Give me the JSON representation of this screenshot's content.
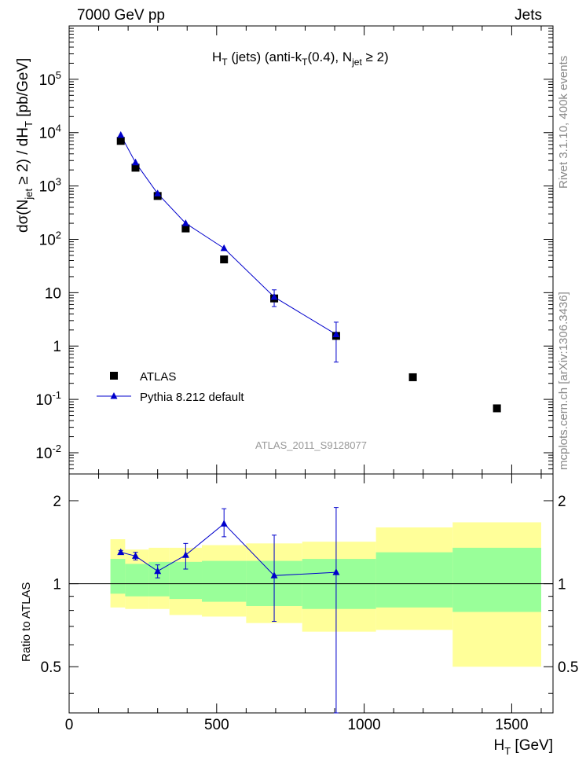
{
  "header": {
    "left": "7000 GeV pp",
    "right": "Jets"
  },
  "side_text": {
    "rivet": "Rivet 3.1.10,  400k events",
    "mcplots": "mcplots.cern.ch [arXiv:1306.3436]"
  },
  "colors": {
    "data": "#000000",
    "mc": "#0000cc",
    "band_inner": "#99ff99",
    "band_outer": "#ffff99",
    "analysis_label": "#999999"
  },
  "chart_data": [
    {
      "type": "scatter",
      "panel": "main",
      "title": "H_T (jets) (anti-k_T(0.4), N_jet ≥ 2)",
      "ylabel": "dσ(N_jet ≥ 2) / dH_T [pb/GeV]",
      "yscale": "log",
      "xlim": [
        0,
        1640
      ],
      "ylim": [
        0.004,
        1000000
      ],
      "y_ticks": [
        {
          "v": 0.01,
          "label": "10^-2"
        },
        {
          "v": 0.1,
          "label": "10^-1"
        },
        {
          "v": 1,
          "label": "1"
        },
        {
          "v": 10,
          "label": "10"
        },
        {
          "v": 100,
          "label": "10^2"
        },
        {
          "v": 1000,
          "label": "10^3"
        },
        {
          "v": 10000,
          "label": "10^4"
        },
        {
          "v": 100000,
          "label": "10^5"
        }
      ],
      "analysis_label": "ATLAS_2011_S9128077",
      "series": [
        {
          "name": "ATLAS",
          "marker": "square",
          "x": [
            175,
            225,
            300,
            395,
            525,
            695,
            905,
            1165,
            1450
          ],
          "y": [
            7000,
            2200,
            650,
            160,
            42,
            7.8,
            1.55,
            0.26,
            0.068
          ]
        },
        {
          "name": "Pythia 8.212 default",
          "marker": "triangle",
          "x": [
            175,
            225,
            300,
            395,
            525,
            695,
            905
          ],
          "y": [
            9000,
            2750,
            720,
            200,
            68,
            8.3,
            1.65
          ],
          "yerr_low": [
            0,
            0,
            0,
            0,
            0,
            2.8,
            1.15
          ],
          "yerr_high": [
            0,
            0,
            0,
            0,
            0,
            3.0,
            1.15
          ]
        }
      ]
    },
    {
      "type": "line",
      "panel": "ratio",
      "ylabel": "Ratio to ATLAS",
      "yscale": "log",
      "xlabel": "H_T [GeV]",
      "xlim": [
        0,
        1640
      ],
      "ylim": [
        0.34,
        2.5
      ],
      "x_ticks": [
        0,
        500,
        1000,
        1500
      ],
      "y_ticks": [
        0.5,
        1,
        2
      ],
      "reference": 1,
      "bands": {
        "bins": [
          {
            "x0": 140,
            "x1": 190,
            "inner_lo": 0.92,
            "inner_hi": 1.23,
            "outer_lo": 0.82,
            "outer_hi": 1.45
          },
          {
            "x0": 190,
            "x1": 270,
            "inner_lo": 0.9,
            "inner_hi": 1.18,
            "outer_lo": 0.81,
            "outer_hi": 1.33
          },
          {
            "x0": 270,
            "x1": 340,
            "inner_lo": 0.9,
            "inner_hi": 1.2,
            "outer_lo": 0.81,
            "outer_hi": 1.35
          },
          {
            "x0": 340,
            "x1": 450,
            "inner_lo": 0.88,
            "inner_hi": 1.2,
            "outer_lo": 0.77,
            "outer_hi": 1.35
          },
          {
            "x0": 450,
            "x1": 600,
            "inner_lo": 0.86,
            "inner_hi": 1.21,
            "outer_lo": 0.76,
            "outer_hi": 1.38
          },
          {
            "x0": 600,
            "x1": 790,
            "inner_lo": 0.83,
            "inner_hi": 1.21,
            "outer_lo": 0.72,
            "outer_hi": 1.4
          },
          {
            "x0": 790,
            "x1": 1040,
            "inner_lo": 0.81,
            "inner_hi": 1.23,
            "outer_lo": 0.67,
            "outer_hi": 1.42
          },
          {
            "x0": 1040,
            "x1": 1300,
            "inner_lo": 0.82,
            "inner_hi": 1.3,
            "outer_lo": 0.68,
            "outer_hi": 1.6
          },
          {
            "x0": 1300,
            "x1": 1600,
            "inner_lo": 0.79,
            "inner_hi": 1.35,
            "outer_lo": 0.5,
            "outer_hi": 1.67
          }
        ]
      },
      "series": [
        {
          "name": "Pythia 8.212 default",
          "x": [
            175,
            225,
            300,
            395,
            525,
            695,
            905
          ],
          "y": [
            1.3,
            1.26,
            1.11,
            1.27,
            1.65,
            1.07,
            1.1
          ],
          "yerr_low": [
            0.02,
            0.04,
            0.06,
            0.14,
            0.17,
            0.34,
            0.76
          ],
          "yerr_high": [
            0.02,
            0.04,
            0.06,
            0.13,
            0.22,
            0.43,
            0.79
          ]
        }
      ]
    }
  ]
}
